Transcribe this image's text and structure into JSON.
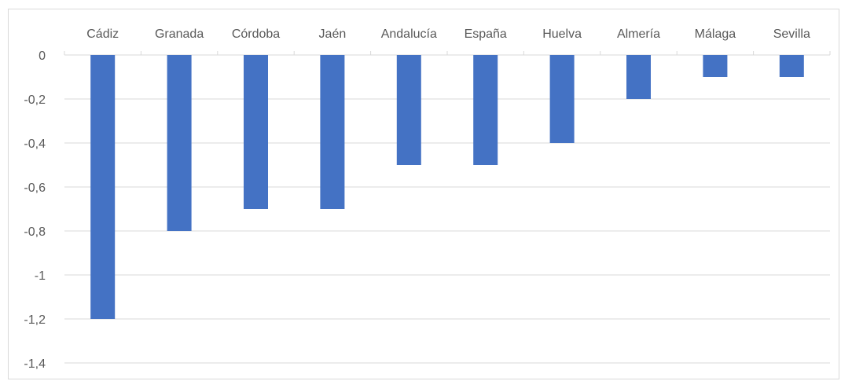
{
  "chart_data": {
    "type": "bar",
    "categories": [
      "Cádiz",
      "Granada",
      "Córdoba",
      "Jaén",
      "Andalucía",
      "España",
      "Huelva",
      "Almería",
      "Málaga",
      "Sevilla"
    ],
    "values": [
      -1.2,
      -0.8,
      -0.7,
      -0.7,
      -0.5,
      -0.5,
      -0.4,
      -0.2,
      -0.1,
      -0.1
    ],
    "yticks": [
      0,
      -0.2,
      -0.4,
      -0.6,
      -0.8,
      -1,
      -1.2,
      -1.4
    ],
    "ytick_labels": [
      "0",
      "-0,2",
      "-0,4",
      "-0,6",
      "-0,8",
      "-1",
      "-1,2",
      "-1,4"
    ],
    "ylim": [
      -1.4,
      0
    ],
    "category_axis_position": "top",
    "grid": true,
    "legend": "none",
    "bar_color": "#4472C4",
    "gridline_color": "#d9d9d9",
    "text_color": "#595959"
  }
}
